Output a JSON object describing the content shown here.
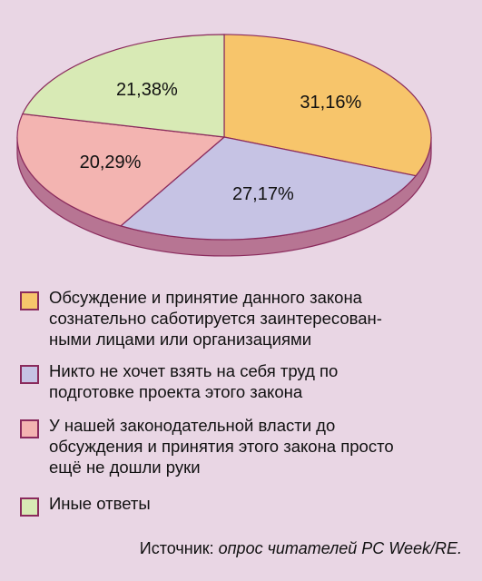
{
  "chart_data": {
    "type": "pie",
    "categories": [
      "Обсуждение и принятие данного закона\nсознательно саботируется заинтересован-\nными лицами или организациями",
      "Никто не хочет взять на себя труд по\nподготовке проекта этого закона",
      "У нашей законодательной власти до\nобсуждения и принятия этого закона просто\nещё не дошли руки",
      "Иные ответы"
    ],
    "values": [
      31.16,
      27.17,
      20.29,
      21.38
    ],
    "value_labels": [
      "31,16%",
      "27,17%",
      "20,29%",
      "21,38%"
    ],
    "colors": [
      "#f7c56b",
      "#c6c3e4",
      "#f3b4b1",
      "#d8eab5"
    ],
    "legend_placement": "bottom",
    "title": "",
    "xlabel": "",
    "ylabel": ""
  },
  "source": {
    "prefix": "Источник: ",
    "text": "опрос читателей PC Week/RE."
  },
  "colors": {
    "background": "#e9d6e4",
    "depth": "#b77593",
    "outline": "#8a2a5c"
  }
}
